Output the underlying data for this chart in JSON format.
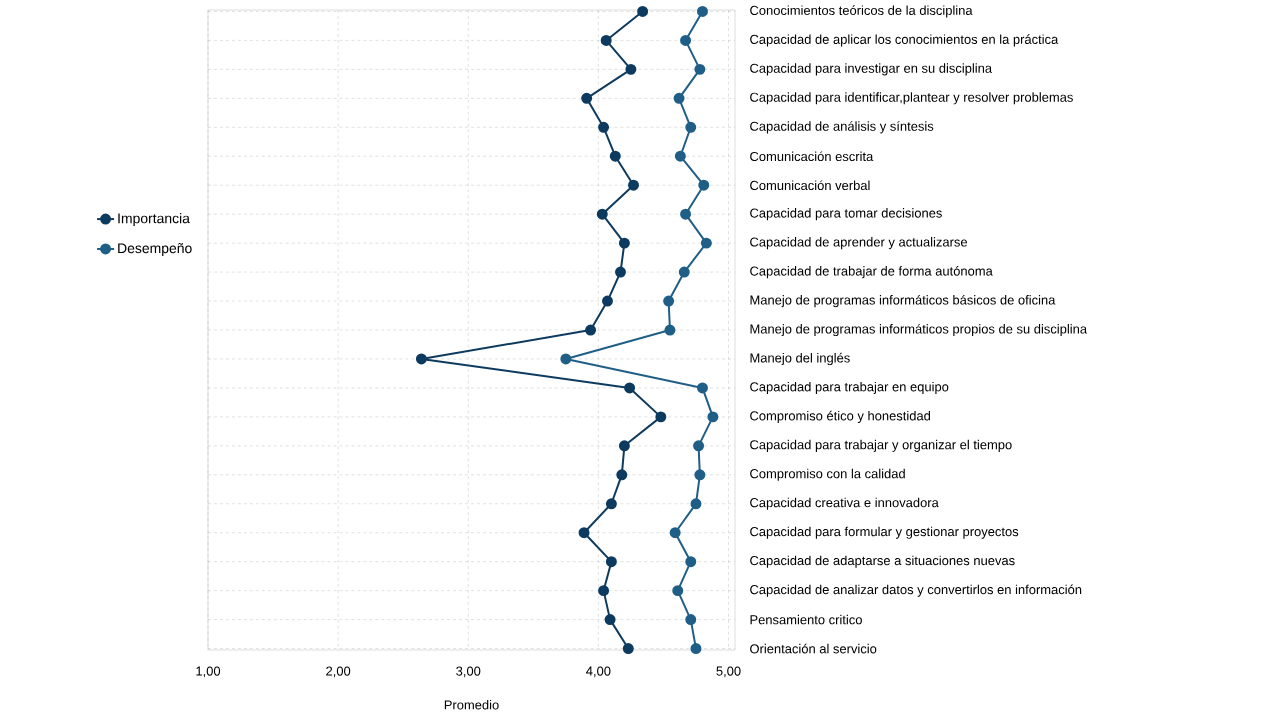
{
  "chart_data": {
    "type": "line",
    "xlabel": "Promedio",
    "categories": [
      "Conocimientos teóricos de la disciplina",
      "Capacidad de aplicar los conocimientos en la práctica",
      "Capacidad para investigar en su disciplina",
      "Capacidad para identificar,plantear y resolver problemas",
      "Capacidad de análisis y síntesis",
      "Comunicación escrita",
      "Comunicación verbal",
      "Capacidad para tomar decisiones",
      "Capacidad de aprender y actualizarse",
      "Capacidad de trabajar de forma autónoma",
      "Manejo de programas informáticos básicos de oficina",
      "Manejo de programas informáticos propios de su disciplina",
      "Manejo del inglés",
      "Capacidad para trabajar en equipo",
      "Compromiso ético y honestidad",
      "Capacidad para trabajar y organizar el tiempo",
      "Compromiso con la calidad",
      "Capacidad creativa e innovadora",
      "Capacidad para formular y gestionar proyectos",
      "Capacidad de adaptarse a situaciones nuevas",
      "Capacidad de analizar datos y convertirlos en información",
      "Pensamiento critico",
      "Orientación al servicio"
    ],
    "orientation": "horizontal",
    "series": [
      {
        "name": "Importancia",
        "color": "#0d3a5f",
        "values": [
          4.34,
          4.06,
          4.25,
          3.91,
          4.04,
          4.13,
          4.27,
          4.03,
          4.2,
          4.17,
          4.07,
          3.94,
          2.64,
          4.24,
          4.48,
          4.2,
          4.18,
          4.1,
          3.89,
          4.1,
          4.04,
          4.09,
          4.23
        ]
      },
      {
        "name": "Desempeño",
        "color": "#1f5f87",
        "values": [
          4.8,
          4.67,
          4.78,
          4.62,
          4.71,
          4.63,
          4.81,
          4.67,
          4.83,
          4.66,
          4.54,
          4.55,
          3.75,
          4.8,
          4.88,
          4.77,
          4.78,
          4.75,
          4.59,
          4.71,
          4.61,
          4.71,
          4.75
        ]
      }
    ],
    "xlim": [
      1,
      5.05
    ],
    "xticks": [
      {
        "value": 1,
        "label": "1,00"
      },
      {
        "value": 2,
        "label": "2,00"
      },
      {
        "value": 3,
        "label": "3,00"
      },
      {
        "value": 4,
        "label": "4,00"
      },
      {
        "value": 5,
        "label": "5,00"
      }
    ],
    "grid": true,
    "legend": "left",
    "marker": "circle",
    "line_style": "solid"
  }
}
